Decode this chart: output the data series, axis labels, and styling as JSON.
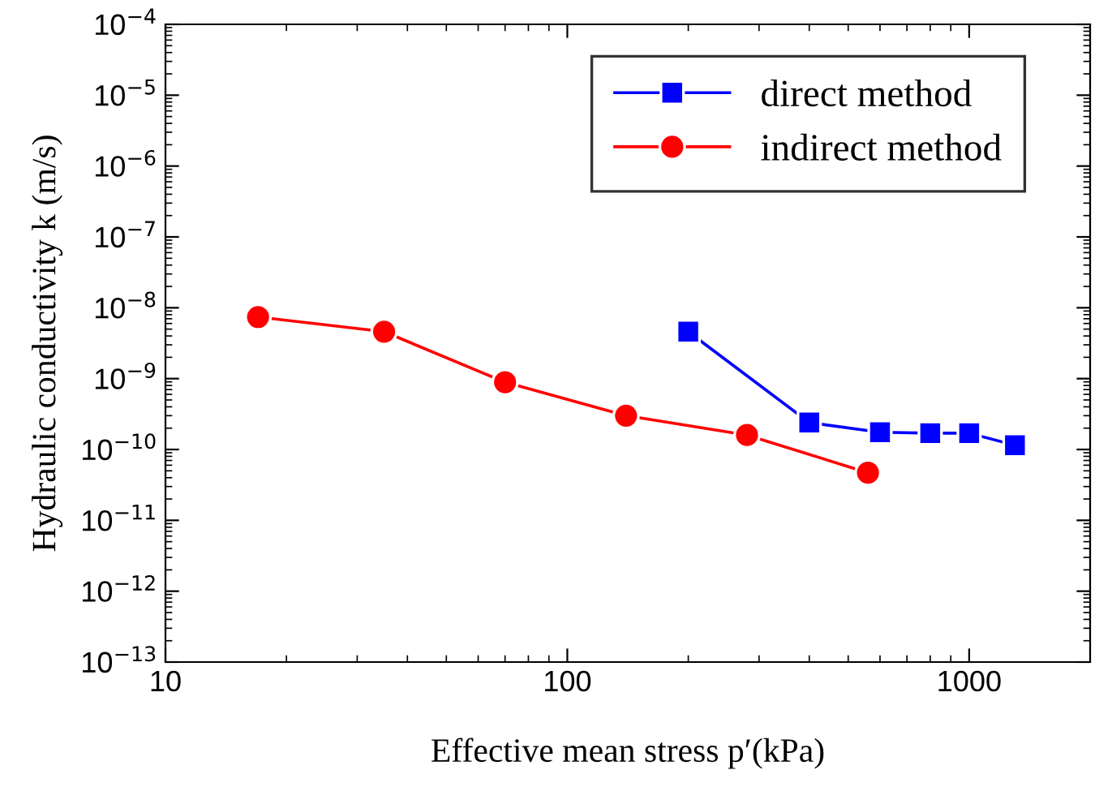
{
  "chart_data": {
    "type": "line",
    "xlabel": "Effective mean stress p′(kPa)",
    "ylabel": "Hydraulic conductivity k (m/s)",
    "log": "xy",
    "xlim": [
      10,
      2000
    ],
    "xticks": [
      10,
      100,
      1000
    ],
    "ylim": [
      1e-13,
      0.0001
    ],
    "yticks": [
      {
        "value": 1e-13,
        "label": "10$^{−13}$"
      },
      {
        "value": 1e-12,
        "label": "10$^{−12}$"
      },
      {
        "value": 1e-11,
        "label": "10$^{−11}$"
      },
      {
        "value": 1e-10,
        "label": "10$^{−10}$"
      },
      {
        "value": 1e-09,
        "label": "10$^{−9}$"
      },
      {
        "value": 1e-08,
        "label": "10$^{−8}$"
      },
      {
        "value": 1e-07,
        "label": "10$^{−7}$"
      },
      {
        "value": 1e-06,
        "label": "10$^{−6}$"
      },
      {
        "value": 1e-05,
        "label": "10$^{−5}$"
      },
      {
        "value": 0.0001,
        "label": "10$^{−4}$"
      }
    ],
    "grid": false,
    "legend": "top right",
    "series": [
      {
        "name": "direct method",
        "color": "#0000ff",
        "marker": "square",
        "x": [
          200,
          400,
          600,
          800,
          1000,
          1300
        ],
        "values": [
          4.6e-09,
          2.4e-10,
          1.75e-10,
          1.7e-10,
          1.7e-10,
          1.15e-10
        ]
      },
      {
        "name": "indirect method",
        "color": "#ff0000",
        "marker": "circle",
        "x": [
          17,
          35,
          70,
          140,
          280,
          560
        ],
        "values": [
          7.4e-09,
          4.6e-09,
          8.9e-10,
          3e-10,
          1.6e-10,
          4.7e-11
        ]
      }
    ]
  }
}
